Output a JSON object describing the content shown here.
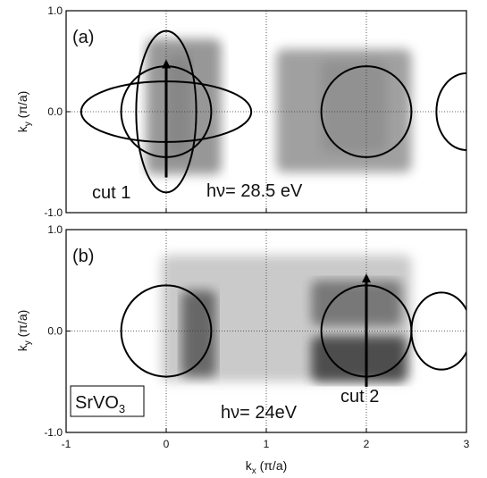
{
  "chart_data": [
    {
      "type": "heatmap",
      "panel_label": "(a)",
      "xlim": [
        -1,
        3
      ],
      "ylim": [
        -1.0,
        1.0
      ],
      "xticks": [
        "-1",
        "0",
        "1",
        "2",
        "3"
      ],
      "yticks": [
        "1.0",
        "0.0",
        "-1.0"
      ],
      "ylabel": {
        "main": "k",
        "sub": "y",
        "unit": " (π/a)"
      },
      "annotations": {
        "cut": "cut 1",
        "photon": "hν= 28.5 eV"
      },
      "intensity_regions": [
        {
          "x": [
            0.0,
            0.25
          ],
          "y": [
            -0.45,
            0.55
          ],
          "level": 0.85
        },
        {
          "x": [
            -0.2,
            0.55
          ],
          "y": [
            -0.62,
            0.72
          ],
          "level": 0.5
        },
        {
          "x": [
            1.55,
            2.2
          ],
          "y": [
            -0.4,
            0.5
          ],
          "level": 0.8
        },
        {
          "x": [
            1.1,
            2.45
          ],
          "y": [
            -0.6,
            0.62
          ],
          "level": 0.45
        }
      ],
      "overlays": [
        {
          "shape": "ellipse",
          "cx": 0.0,
          "cy": 0.0,
          "rx": 0.3,
          "ry": 0.8
        },
        {
          "shape": "ellipse",
          "cx": 0.0,
          "cy": 0.0,
          "rx": 0.85,
          "ry": 0.3
        },
        {
          "shape": "ellipse",
          "cx": 0.0,
          "cy": 0.0,
          "rx": 0.45,
          "ry": 0.45
        },
        {
          "shape": "ellipse",
          "cx": 2.0,
          "cy": 0.0,
          "rx": 0.45,
          "ry": 0.45
        },
        {
          "shape": "ellipse",
          "cx": 3.0,
          "cy": 0.0,
          "rx": 0.3,
          "ry": 0.38
        }
      ],
      "cut": {
        "x": 0.0,
        "y_from": -0.65,
        "y_to": 0.5
      }
    },
    {
      "type": "heatmap",
      "panel_label": "(b)",
      "xlim": [
        -1,
        3
      ],
      "ylim": [
        -1.0,
        1.0
      ],
      "xticks": [
        "-1",
        "0",
        "1",
        "2",
        "3"
      ],
      "yticks": [
        "1.0",
        "0.0",
        "-1.0"
      ],
      "xlabel": {
        "main": "k",
        "sub": "x",
        "unit": " (π/a)"
      },
      "ylabel": {
        "main": "k",
        "sub": "y",
        "unit": " (π/a)"
      },
      "annotations": {
        "cut": "cut 2",
        "photon": "hν= 24eV",
        "material_main": "SrVO",
        "material_sub": "3"
      },
      "intensity_regions": [
        {
          "x": [
            -0.05,
            2.45
          ],
          "y": [
            -0.5,
            0.75
          ],
          "level": 0.2
        },
        {
          "x": [
            0.15,
            0.5
          ],
          "y": [
            -0.45,
            0.4
          ],
          "level": 0.75
        },
        {
          "x": [
            1.45,
            2.35
          ],
          "y": [
            0.05,
            0.5
          ],
          "level": 0.65
        },
        {
          "x": [
            1.45,
            2.4
          ],
          "y": [
            -0.5,
            -0.05
          ],
          "level": 0.9
        }
      ],
      "overlays": [
        {
          "shape": "ellipse",
          "cx": 0.0,
          "cy": 0.0,
          "rx": 0.45,
          "ry": 0.45
        },
        {
          "shape": "ellipse",
          "cx": 2.0,
          "cy": 0.0,
          "rx": 0.45,
          "ry": 0.45
        },
        {
          "shape": "ellipse",
          "cx": 2.75,
          "cy": 0.0,
          "rx": 0.3,
          "ry": 0.38
        }
      ],
      "cut": {
        "x": 2.0,
        "y_from": -0.55,
        "y_to": 0.55
      }
    }
  ]
}
